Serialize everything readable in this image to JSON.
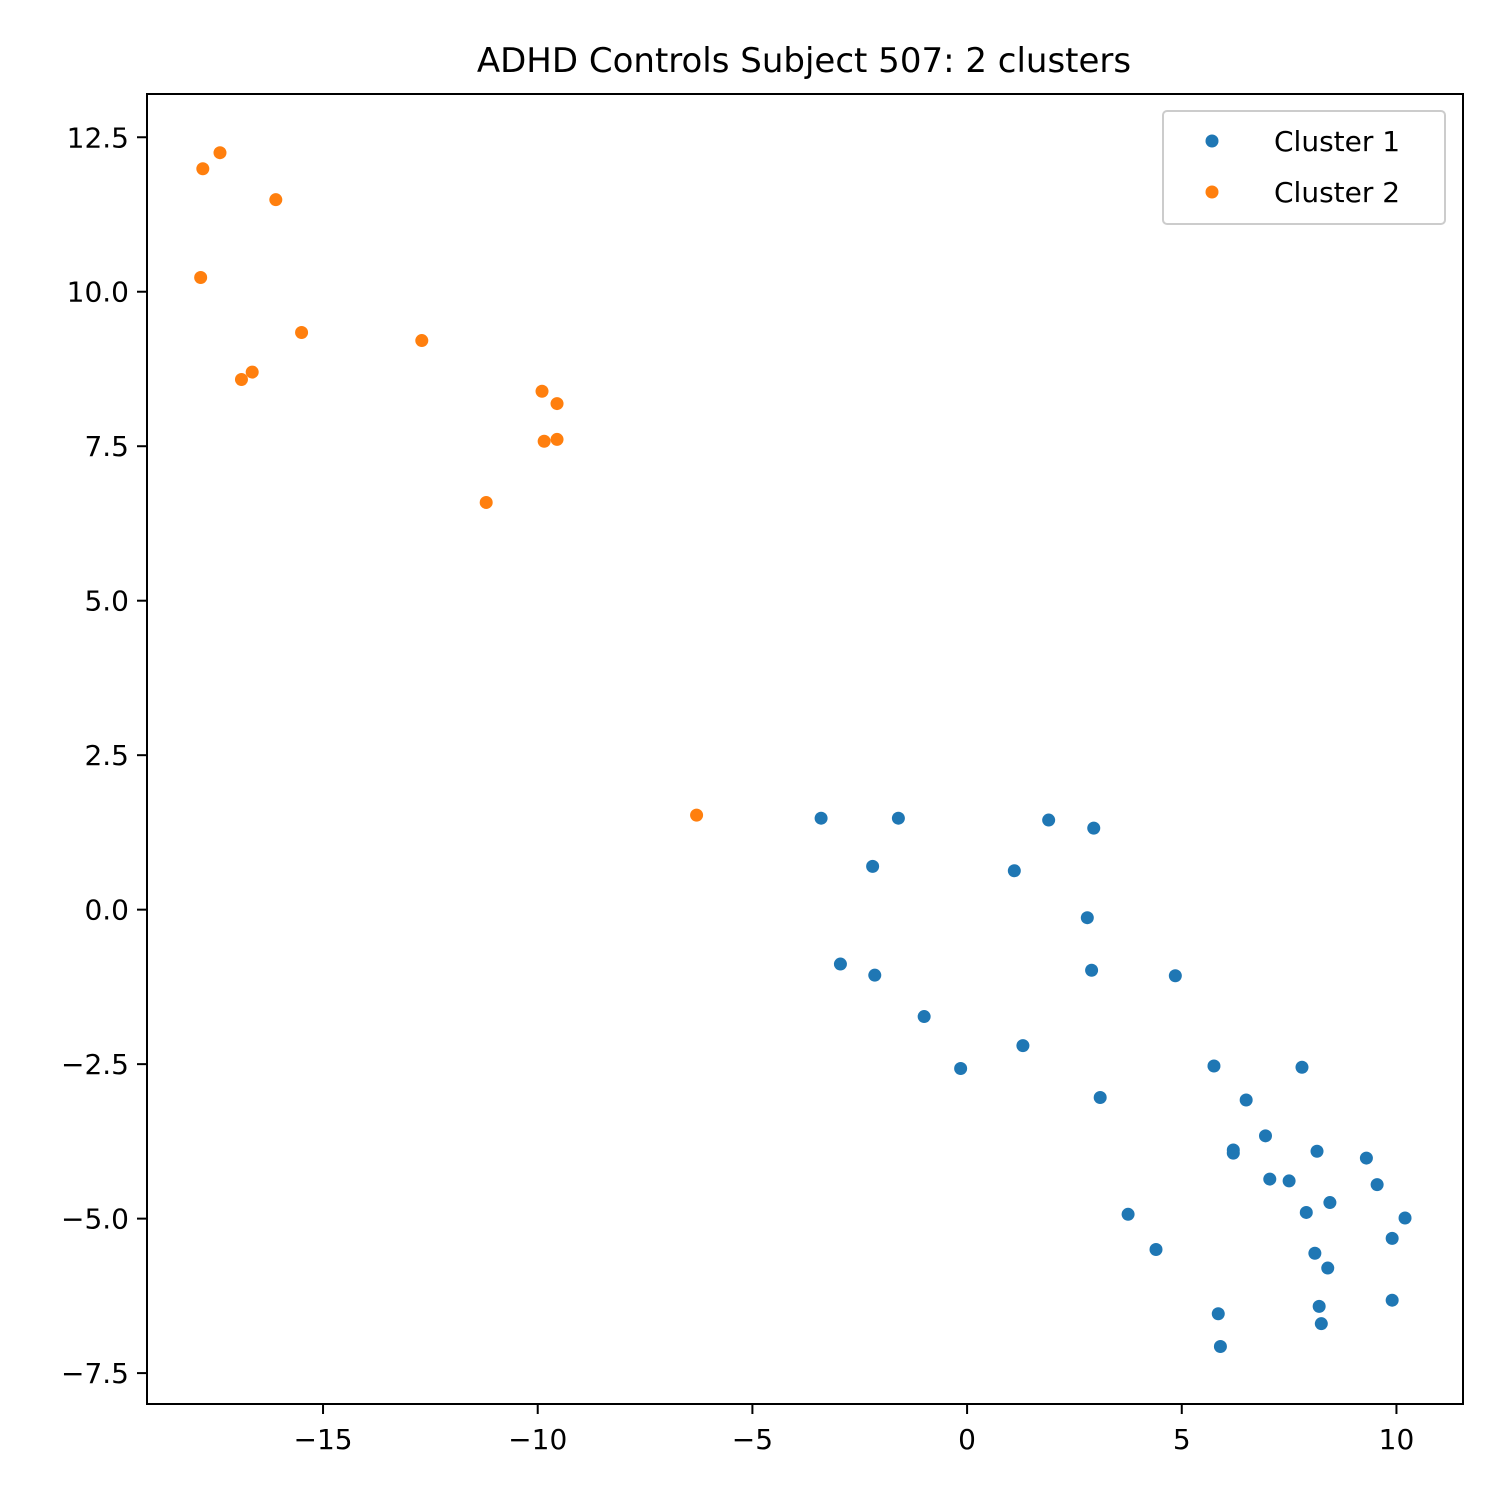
{
  "chart_data": {
    "type": "scatter",
    "title": "ADHD Controls Subject 507: 2 clusters",
    "xlabel": "",
    "ylabel": "",
    "xlim": [
      -19.1,
      11.55
    ],
    "ylim": [
      -8.0,
      13.2
    ],
    "grid": false,
    "legend_position": "top-right",
    "x_ticks": [
      {
        "value": -15,
        "label": "−15"
      },
      {
        "value": -10,
        "label": "−10"
      },
      {
        "value": -5,
        "label": "−5"
      },
      {
        "value": 0,
        "label": "0"
      },
      {
        "value": 5,
        "label": "5"
      },
      {
        "value": 10,
        "label": "10"
      }
    ],
    "y_ticks": [
      {
        "value": -7.5,
        "label": "−7.5"
      },
      {
        "value": -5.0,
        "label": "−5.0"
      },
      {
        "value": -2.5,
        "label": "−2.5"
      },
      {
        "value": 0.0,
        "label": "0.0"
      },
      {
        "value": 2.5,
        "label": "2.5"
      },
      {
        "value": 5.0,
        "label": "5.0"
      },
      {
        "value": 7.5,
        "label": "7.5"
      },
      {
        "value": 10.0,
        "label": "10.0"
      },
      {
        "value": 12.5,
        "label": "12.5"
      }
    ],
    "series": [
      {
        "name": "Cluster 1",
        "color": "#1f77b4",
        "points": [
          [
            -3.4,
            1.48
          ],
          [
            -1.6,
            1.48
          ],
          [
            1.9,
            1.45
          ],
          [
            2.95,
            1.32
          ],
          [
            -2.2,
            0.7
          ],
          [
            1.1,
            0.63
          ],
          [
            2.8,
            -0.13
          ],
          [
            -2.95,
            -0.88
          ],
          [
            -2.15,
            -1.06
          ],
          [
            2.9,
            -0.98
          ],
          [
            4.85,
            -1.07
          ],
          [
            -1.0,
            -1.73
          ],
          [
            1.3,
            -2.2
          ],
          [
            -0.15,
            -2.57
          ],
          [
            5.75,
            -2.53
          ],
          [
            7.8,
            -2.55
          ],
          [
            3.1,
            -3.04
          ],
          [
            6.5,
            -3.08
          ],
          [
            6.95,
            -3.66
          ],
          [
            6.2,
            -3.89
          ],
          [
            6.2,
            -3.94
          ],
          [
            8.15,
            -3.91
          ],
          [
            9.3,
            -4.02
          ],
          [
            7.05,
            -4.36
          ],
          [
            7.5,
            -4.39
          ],
          [
            9.55,
            -4.45
          ],
          [
            8.45,
            -4.74
          ],
          [
            7.9,
            -4.9
          ],
          [
            3.75,
            -4.93
          ],
          [
            10.2,
            -4.99
          ],
          [
            9.9,
            -5.32
          ],
          [
            4.4,
            -5.5
          ],
          [
            8.1,
            -5.56
          ],
          [
            8.4,
            -5.8
          ],
          [
            9.9,
            -6.32
          ],
          [
            8.2,
            -6.42
          ],
          [
            5.85,
            -6.54
          ],
          [
            8.25,
            -6.7
          ],
          [
            5.9,
            -7.07
          ]
        ]
      },
      {
        "name": "Cluster 2",
        "color": "#ff7f0e",
        "points": [
          [
            -17.4,
            12.25
          ],
          [
            -17.8,
            11.99
          ],
          [
            -16.1,
            11.49
          ],
          [
            -17.85,
            10.23
          ],
          [
            -15.5,
            9.34
          ],
          [
            -12.7,
            9.21
          ],
          [
            -16.65,
            8.7
          ],
          [
            -16.9,
            8.58
          ],
          [
            -9.9,
            8.39
          ],
          [
            -9.55,
            8.19
          ],
          [
            -9.55,
            7.61
          ],
          [
            -9.85,
            7.58
          ],
          [
            -11.2,
            6.59
          ],
          [
            -6.3,
            1.53
          ]
        ]
      }
    ]
  }
}
